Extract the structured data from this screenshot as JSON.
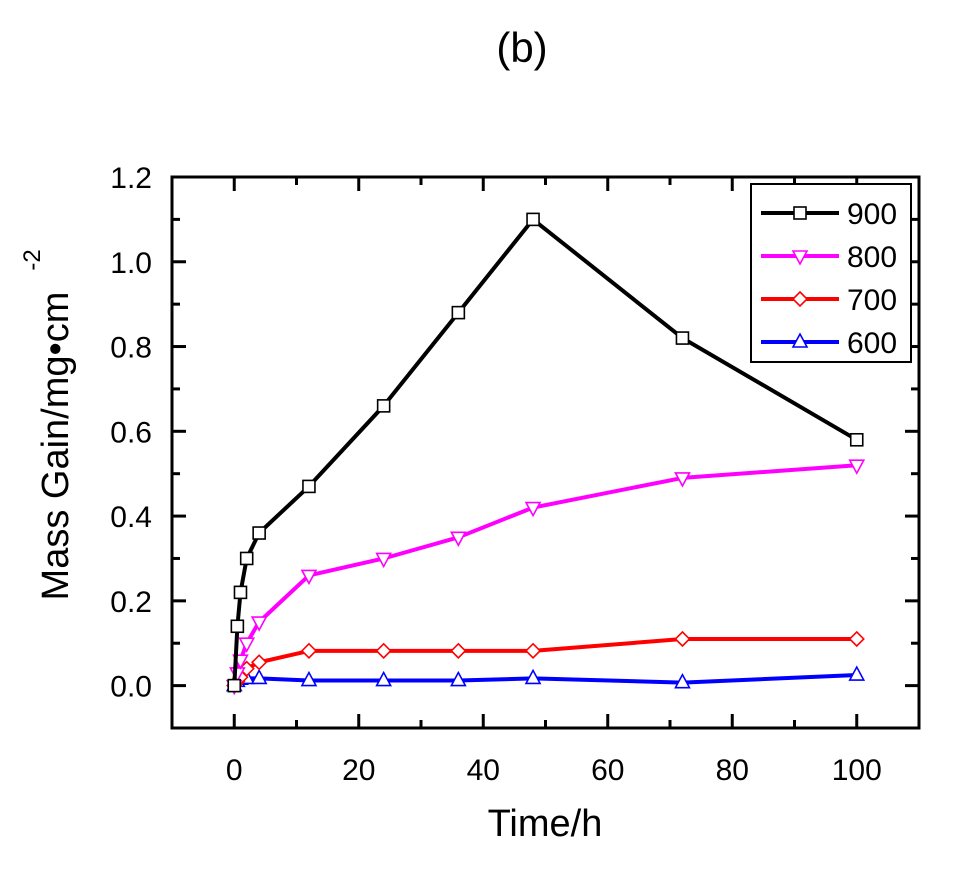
{
  "chart_data": {
    "type": "line",
    "title": "(b)",
    "xlabel": "Time/h",
    "ylabel": "Mass Gain/mg•cm",
    "ylabel_superscript": "-2",
    "xlim": [
      -10,
      110
    ],
    "ylim": [
      -0.1,
      1.2
    ],
    "xticks": [
      0,
      20,
      40,
      60,
      80,
      100
    ],
    "yticks": [
      0.0,
      0.2,
      0.4,
      0.6,
      0.8,
      1.0,
      1.2
    ],
    "xtick_labels": [
      "0",
      "20",
      "40",
      "60",
      "80",
      "100"
    ],
    "ytick_labels": [
      "0.0",
      "0.2",
      "0.4",
      "0.6",
      "0.8",
      "1.0",
      "1.2"
    ],
    "grid": false,
    "legend_position": "top-right",
    "series": [
      {
        "name": "900",
        "color": "#000000",
        "marker": "square",
        "x": [
          0,
          0.5,
          1,
          2,
          4,
          12,
          24,
          36,
          48,
          72,
          100
        ],
        "y": [
          0.0,
          0.14,
          0.22,
          0.3,
          0.36,
          0.47,
          0.66,
          0.88,
          1.1,
          0.82,
          0.58
        ]
      },
      {
        "name": "800",
        "color": "#ff00ff",
        "marker": "triangle-down",
        "x": [
          0,
          0.5,
          1,
          2,
          4,
          12,
          24,
          36,
          48,
          72,
          100
        ],
        "y": [
          0.0,
          0.03,
          0.06,
          0.1,
          0.15,
          0.26,
          0.3,
          0.35,
          0.42,
          0.49,
          0.52
        ]
      },
      {
        "name": "700",
        "color": "#ff0000",
        "marker": "diamond",
        "x": [
          0,
          0.5,
          1,
          2,
          4,
          12,
          24,
          36,
          48,
          72,
          100
        ],
        "y": [
          0.0,
          0.01,
          0.02,
          0.04,
          0.055,
          0.082,
          0.082,
          0.082,
          0.082,
          0.11,
          0.11
        ]
      },
      {
        "name": "600",
        "color": "#0000ff",
        "marker": "triangle-up",
        "x": [
          0,
          0.5,
          1,
          2,
          4,
          12,
          24,
          36,
          48,
          72,
          100
        ],
        "y": [
          0.0,
          0.01,
          0.015,
          0.017,
          0.017,
          0.012,
          0.012,
          0.012,
          0.017,
          0.007,
          0.025
        ]
      }
    ]
  }
}
